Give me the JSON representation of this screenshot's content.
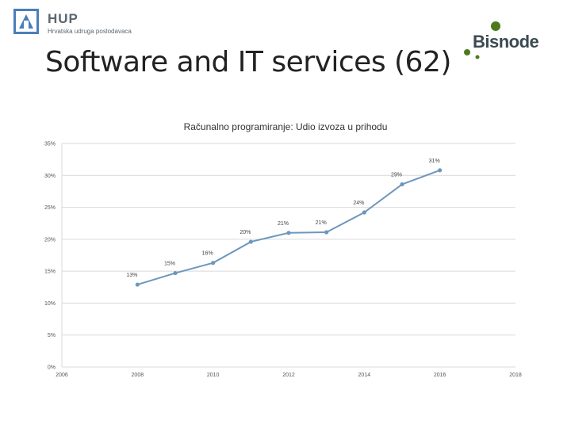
{
  "header": {
    "title": "Software and IT services (62)",
    "hup_logo": {
      "name": "HUP",
      "subtitle": "Hrvatska udruga poslodavaca",
      "icon": "hup-logo-icon"
    },
    "bisnode_logo": {
      "name": "Bisnode",
      "icon": "bisnode-logo-icon"
    }
  },
  "colors": {
    "series": "#6d97bd",
    "grid": "#d9d9d9",
    "bisnode_green": "#4e7a1e"
  },
  "chart_data": {
    "type": "line",
    "title": "Računalno programiranje: Udio izvoza u prihodu",
    "xlabel": "",
    "ylabel": "",
    "xlim": [
      2006,
      2018
    ],
    "ylim": [
      0,
      35
    ],
    "x_ticks": [
      "2006",
      "2008",
      "2010",
      "2012",
      "2014",
      "2016",
      "2018"
    ],
    "y_ticks": [
      "0%",
      "5%",
      "10%",
      "15%",
      "20%",
      "25%",
      "30%",
      "35%"
    ],
    "grid": {
      "horizontal": true,
      "vertical": false
    },
    "series": [
      {
        "x": [
          2008,
          2009,
          2010,
          2011,
          2012,
          2013,
          2014,
          2015,
          2016
        ],
        "values": [
          12.9,
          14.7,
          16.3,
          19.6,
          21.0,
          21.1,
          24.2,
          28.6,
          30.8
        ],
        "labels": [
          "13%",
          "15%",
          "16%",
          "20%",
          "21%",
          "21%",
          "24%",
          "29%",
          "31%"
        ]
      }
    ]
  }
}
